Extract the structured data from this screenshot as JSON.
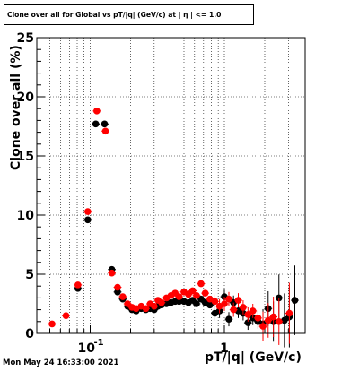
{
  "title": "Clone  over all for Global vs pT/|q| (GeV/c) at |  η | <= 1.0",
  "timestamp": "Mon May 24 16:33:00 2021",
  "chart_data": {
    "type": "scatter",
    "title": "Clone  over all for Global vs pT/|q| (GeV/c) at |  η | <= 1.0",
    "xlabel": "pT/|q| (GeV/c)",
    "ylabel": "Clone  over all (%)",
    "x_scale": "log",
    "xlim": [
      0.04,
      4.0
    ],
    "ylim": [
      0,
      25
    ],
    "grid": true,
    "x_tick_labels": [
      {
        "base": "10",
        "exp": "-1",
        "value": 0.1
      },
      {
        "text": "1",
        "value": 1
      }
    ],
    "y_tick_labels": [
      "0",
      "5",
      "10",
      "15",
      "20",
      "25"
    ],
    "series": [
      {
        "color": "#000000",
        "points": [
          {
            "x": 0.081,
            "y": 3.8
          },
          {
            "x": 0.096,
            "y": 9.6
          },
          {
            "x": 0.11,
            "y": 17.7
          },
          {
            "x": 0.128,
            "y": 17.7
          },
          {
            "x": 0.145,
            "y": 5.4
          },
          {
            "x": 0.16,
            "y": 3.5
          },
          {
            "x": 0.175,
            "y": 2.9
          },
          {
            "x": 0.19,
            "y": 2.3
          },
          {
            "x": 0.205,
            "y": 2.0
          },
          {
            "x": 0.22,
            "y": 1.9
          },
          {
            "x": 0.24,
            "y": 2.1
          },
          {
            "x": 0.26,
            "y": 2.0
          },
          {
            "x": 0.28,
            "y": 2.1
          },
          {
            "x": 0.3,
            "y": 2.0
          },
          {
            "x": 0.32,
            "y": 2.3
          },
          {
            "x": 0.34,
            "y": 2.4
          },
          {
            "x": 0.37,
            "y": 2.5
          },
          {
            "x": 0.4,
            "y": 2.6
          },
          {
            "x": 0.43,
            "y": 2.7
          },
          {
            "x": 0.46,
            "y": 2.7
          },
          {
            "x": 0.5,
            "y": 2.7
          },
          {
            "x": 0.54,
            "y": 2.6
          },
          {
            "x": 0.58,
            "y": 2.8
          },
          {
            "x": 0.62,
            "y": 2.5
          },
          {
            "x": 0.67,
            "y": 2.9
          },
          {
            "x": 0.72,
            "y": 2.6
          },
          {
            "x": 0.78,
            "y": 2.4
          },
          {
            "x": 0.85,
            "y": 1.7
          },
          {
            "x": 0.92,
            "y": 1.9
          },
          {
            "x": 1.0,
            "y": 3.1
          },
          {
            "x": 1.08,
            "y": 1.2
          },
          {
            "x": 1.17,
            "y": 2.6
          },
          {
            "x": 1.27,
            "y": 1.9
          },
          {
            "x": 1.38,
            "y": 1.7
          },
          {
            "x": 1.5,
            "y": 0.9
          },
          {
            "x": 1.63,
            "y": 1.3
          },
          {
            "x": 1.78,
            "y": 1.0
          },
          {
            "x": 1.94,
            "y": 0.8
          },
          {
            "x": 2.12,
            "y": 2.1
          },
          {
            "x": 2.32,
            "y": 1.0
          },
          {
            "x": 2.55,
            "y": 3.0
          },
          {
            "x": 2.8,
            "y": 1.1
          },
          {
            "x": 3.05,
            "y": 1.4
          },
          {
            "x": 3.35,
            "y": 2.8
          }
        ]
      },
      {
        "color": "#ff0000",
        "points": [
          {
            "x": 0.052,
            "y": 0.8
          },
          {
            "x": 0.066,
            "y": 1.5
          },
          {
            "x": 0.081,
            "y": 4.1
          },
          {
            "x": 0.096,
            "y": 10.3
          },
          {
            "x": 0.112,
            "y": 18.8
          },
          {
            "x": 0.13,
            "y": 17.1
          },
          {
            "x": 0.145,
            "y": 5.1
          },
          {
            "x": 0.16,
            "y": 3.9
          },
          {
            "x": 0.175,
            "y": 3.1
          },
          {
            "x": 0.19,
            "y": 2.5
          },
          {
            "x": 0.205,
            "y": 2.2
          },
          {
            "x": 0.22,
            "y": 2.1
          },
          {
            "x": 0.24,
            "y": 2.3
          },
          {
            "x": 0.26,
            "y": 2.1
          },
          {
            "x": 0.28,
            "y": 2.5
          },
          {
            "x": 0.3,
            "y": 2.3
          },
          {
            "x": 0.32,
            "y": 2.8
          },
          {
            "x": 0.34,
            "y": 2.6
          },
          {
            "x": 0.37,
            "y": 3.0
          },
          {
            "x": 0.4,
            "y": 3.2
          },
          {
            "x": 0.43,
            "y": 3.4
          },
          {
            "x": 0.46,
            "y": 3.1
          },
          {
            "x": 0.5,
            "y": 3.5
          },
          {
            "x": 0.54,
            "y": 3.3
          },
          {
            "x": 0.58,
            "y": 3.6
          },
          {
            "x": 0.62,
            "y": 3.2
          },
          {
            "x": 0.67,
            "y": 4.2
          },
          {
            "x": 0.72,
            "y": 3.4
          },
          {
            "x": 0.78,
            "y": 2.9
          },
          {
            "x": 0.85,
            "y": 2.7
          },
          {
            "x": 0.92,
            "y": 2.3
          },
          {
            "x": 1.0,
            "y": 2.5
          },
          {
            "x": 1.08,
            "y": 2.9
          },
          {
            "x": 1.17,
            "y": 2.0
          },
          {
            "x": 1.27,
            "y": 2.8
          },
          {
            "x": 1.38,
            "y": 2.2
          },
          {
            "x": 1.5,
            "y": 1.6
          },
          {
            "x": 1.63,
            "y": 1.9
          },
          {
            "x": 1.78,
            "y": 1.3
          },
          {
            "x": 1.94,
            "y": 0.6
          },
          {
            "x": 2.12,
            "y": 1.1
          },
          {
            "x": 2.32,
            "y": 1.4
          },
          {
            "x": 2.55,
            "y": 1.0
          },
          {
            "x": 3.05,
            "y": 1.7
          }
        ]
      }
    ]
  }
}
